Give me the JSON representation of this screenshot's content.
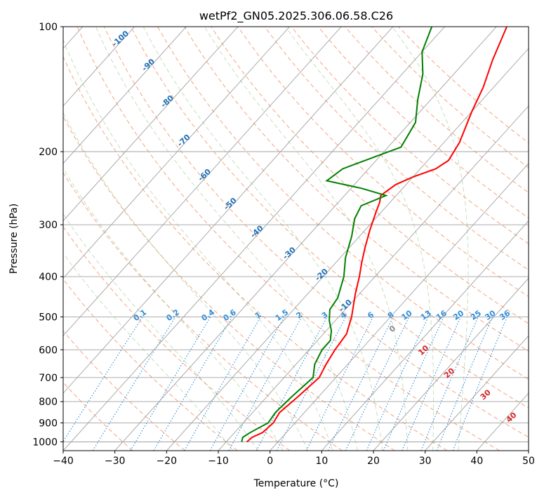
{
  "chart_data": {
    "type": "line",
    "title": "wetPf2_GN05.2025.306.06.58.C26",
    "xlabel": "Temperature (°C)",
    "ylabel": "Pressure (hPa)",
    "xlim": [
      -40,
      50
    ],
    "ylim": [
      1050,
      100
    ],
    "y_scale": "log",
    "x_ticks": [
      -40,
      -30,
      -20,
      -10,
      0,
      10,
      20,
      30,
      40,
      50
    ],
    "y_ticks": [
      100,
      200,
      300,
      400,
      500,
      600,
      700,
      800,
      900,
      1000
    ],
    "grid": true,
    "skew": "skew-T log-P",
    "series": [
      {
        "name": "",
        "color": "#ff0000",
        "points": [
          [
            -6.0,
            1000
          ],
          [
            -5.8,
            975
          ],
          [
            -4.6,
            950
          ],
          [
            -4.2,
            900
          ],
          [
            -4.8,
            850
          ],
          [
            -4.0,
            780
          ],
          [
            -3.2,
            700
          ],
          [
            -4.2,
            650
          ],
          [
            -5.0,
            600
          ],
          [
            -5.5,
            550
          ],
          [
            -7.5,
            500
          ],
          [
            -10.8,
            440
          ],
          [
            -13.0,
            400
          ],
          [
            -15.0,
            370
          ],
          [
            -17.0,
            340
          ],
          [
            -19.0,
            310
          ],
          [
            -21.0,
            280
          ],
          [
            -22.0,
            265
          ],
          [
            -23.0,
            255
          ],
          [
            -22.0,
            240
          ],
          [
            -20.0,
            230
          ],
          [
            -17.0,
            220
          ],
          [
            -16.0,
            210
          ],
          [
            -17.0,
            190
          ],
          [
            -20.0,
            160
          ],
          [
            -22.0,
            140
          ],
          [
            -25.0,
            120
          ],
          [
            -28.0,
            100
          ]
        ]
      },
      {
        "name": "",
        "color": "#008000",
        "points": [
          [
            -7.0,
            1000
          ],
          [
            -7.6,
            975
          ],
          [
            -7.0,
            950
          ],
          [
            -5.2,
            900
          ],
          [
            -5.6,
            850
          ],
          [
            -5.2,
            780
          ],
          [
            -4.4,
            700
          ],
          [
            -6.4,
            650
          ],
          [
            -7.5,
            600
          ],
          [
            -7.5,
            570
          ],
          [
            -9.0,
            540
          ],
          [
            -11.2,
            510
          ],
          [
            -13.0,
            480
          ],
          [
            -13.5,
            450
          ],
          [
            -16.0,
            400
          ],
          [
            -19.0,
            360
          ],
          [
            -21.5,
            320
          ],
          [
            -24.0,
            290
          ],
          [
            -25.0,
            270
          ],
          [
            -22.0,
            255
          ],
          [
            -28.0,
            245
          ],
          [
            -36.0,
            235
          ],
          [
            -35.0,
            220
          ],
          [
            -27.5,
            195
          ],
          [
            -29.0,
            170
          ],
          [
            -32.5,
            150
          ],
          [
            -36.0,
            130
          ],
          [
            -40.0,
            115
          ],
          [
            -42.5,
            100
          ]
        ]
      }
    ],
    "dry_adiabats_C": [
      -30,
      -20,
      -10,
      0,
      10,
      20,
      30,
      40,
      50,
      60,
      70,
      80,
      90,
      100,
      110,
      120,
      130,
      140,
      150,
      160
    ],
    "moist_adiabats_C": [
      -10,
      -5,
      0,
      5,
      10,
      15,
      20,
      25,
      30,
      35
    ],
    "isotherm_labels": [
      "-100",
      "-90",
      "-80",
      "-70",
      "-60",
      "-50",
      "-40",
      "-30",
      "-20",
      "-10"
    ],
    "theta_labels": [
      "0",
      "10",
      "20",
      "30",
      "40"
    ],
    "mixing_ratio_labels": [
      "0.1",
      "0.2",
      "0.4",
      "0.6",
      "1",
      "1.5",
      "2",
      "3",
      "4",
      "6",
      "8",
      "10",
      "13",
      "16",
      "20",
      "25",
      "30",
      "36"
    ]
  }
}
